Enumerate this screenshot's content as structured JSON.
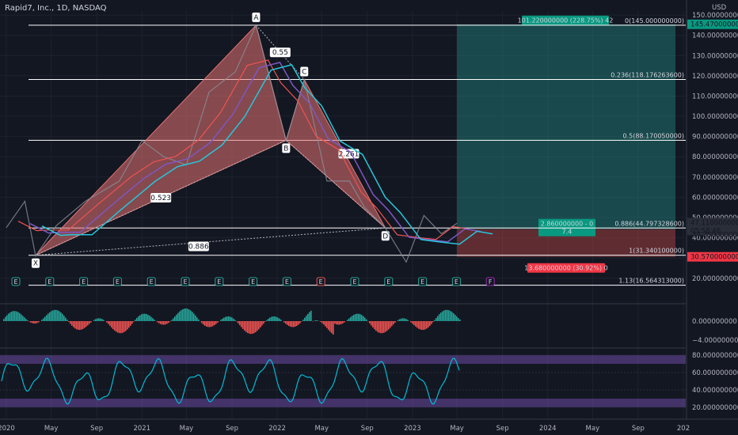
{
  "header": {
    "title": "Rapid7, Inc., 1D, NASDAQ",
    "currency": "USD"
  },
  "colors": {
    "bg": "#131722",
    "up": "#26a69a",
    "down": "#ef5350",
    "pattern": "#e57373",
    "rsi": "#00bcd4",
    "rsi_band": "#7e57c2"
  },
  "chart_data": [
    {
      "type": "line",
      "ylim": [
        16,
        152
      ],
      "y_ticks": [
        "150.000000000",
        "140.000000000",
        "130.000000000",
        "120.000000000",
        "110.000000000",
        "100.000000000",
        "90.000000000",
        "80.000000000",
        "70.000000000",
        "60.000000000",
        "50.000000000",
        "40.000000000",
        "30.000000000",
        "20.000000000"
      ],
      "y_tick_values": [
        150,
        140,
        130,
        120,
        110,
        100,
        90,
        80,
        70,
        60,
        50,
        40,
        30,
        20
      ],
      "x_ticks": [
        "2020",
        "May",
        "Sep",
        "2021",
        "May",
        "Sep",
        "2022",
        "May",
        "Sep",
        "2023",
        "May",
        "Sep",
        "2024",
        "May",
        "Sep",
        "202"
      ],
      "x_tick_dates": [
        "2020-01-01",
        "2020-05-01",
        "2020-09-01",
        "2021-01-01",
        "2021-05-01",
        "2021-09-01",
        "2022-01-01",
        "2022-05-01",
        "2022-09-01",
        "2023-01-01",
        "2023-05-01",
        "2023-09-01",
        "2024-01-01",
        "2024-05-01",
        "2024-09-01",
        "2025-01-01"
      ],
      "price_path": [
        {
          "date": "2020-01-01",
          "value": 45
        },
        {
          "date": "2020-02-20",
          "value": 58
        },
        {
          "date": "2020-03-20",
          "value": 31
        },
        {
          "date": "2020-05-15",
          "value": 46
        },
        {
          "date": "2020-08-01",
          "value": 58
        },
        {
          "date": "2020-11-01",
          "value": 68
        },
        {
          "date": "2021-01-01",
          "value": 88
        },
        {
          "date": "2021-03-01",
          "value": 80
        },
        {
          "date": "2021-05-01",
          "value": 76
        },
        {
          "date": "2021-07-01",
          "value": 112
        },
        {
          "date": "2021-09-10",
          "value": 122
        },
        {
          "date": "2021-11-05",
          "value": 145
        },
        {
          "date": "2021-12-10",
          "value": 120
        },
        {
          "date": "2022-01-25",
          "value": 88
        },
        {
          "date": "2022-03-15",
          "value": 118
        },
        {
          "date": "2022-05-15",
          "value": 68
        },
        {
          "date": "2022-07-15",
          "value": 68
        },
        {
          "date": "2022-08-25",
          "value": 55
        },
        {
          "date": "2022-10-20",
          "value": 44.8
        },
        {
          "date": "2022-12-15",
          "value": 28
        },
        {
          "date": "2023-02-01",
          "value": 51
        },
        {
          "date": "2023-03-20",
          "value": 42
        },
        {
          "date": "2023-05-01",
          "value": 47.11
        }
      ],
      "pattern": {
        "points": [
          {
            "label": "X",
            "date": "2020-03-20",
            "value": 31.34
          },
          {
            "label": "A",
            "date": "2021-11-05",
            "value": 145
          },
          {
            "label": "B",
            "date": "2022-01-25",
            "value": 88.17
          },
          {
            "label": "C",
            "date": "2022-03-15",
            "value": 118.18
          },
          {
            "label": "D",
            "date": "2022-10-20",
            "value": 44.8
          }
        ],
        "ratios": [
          "0.55",
          "0.523",
          "2.261",
          "0.886"
        ]
      },
      "fib_levels": [
        {
          "label": "0(145.000000000)",
          "value": 145
        },
        {
          "label": "0.236(118.176263600)",
          "value": 118.18
        },
        {
          "label": "0.5(88.170050000)",
          "value": 88.17
        },
        {
          "label": "0.886(44.797328600)",
          "value": 44.8
        },
        {
          "label": "1(31.340100000)",
          "value": 31.34
        },
        {
          "label": "1.13(16.564313000)",
          "value": 16.56
        }
      ],
      "position": {
        "target_label": "101.220000000 (228.75%) 42",
        "entry_label": "2.860000000 - 0",
        "entry_sub": "7.4",
        "stop_label": "13.680000000 (30.92%) 0",
        "target": 145.47,
        "entry": 44.25,
        "stop": 30.57
      },
      "price_labels": {
        "target": "145.470000000",
        "last": "47.110000000",
        "countdown": "05:58:46",
        "entry": "44.250000000",
        "stop": "30.570000000"
      },
      "earnings_markers": [
        "E",
        "E",
        "E",
        "E",
        "E",
        "E",
        "E",
        "E",
        "E",
        "E",
        "E",
        "E",
        "E",
        "E",
        "F"
      ]
    },
    {
      "type": "bar",
      "name_hidden": true,
      "y_ticks": [
        "0.000000000",
        "−4.000000000"
      ],
      "y_tick_values": [
        0,
        -4
      ]
    },
    {
      "type": "line",
      "y_ticks": [
        "80.000000000",
        "60.000000000",
        "40.000000000",
        "20.000000000"
      ],
      "y_tick_values": [
        80,
        60,
        40,
        20
      ],
      "bands": [
        [
          70,
          80
        ],
        [
          20,
          30
        ]
      ]
    }
  ]
}
